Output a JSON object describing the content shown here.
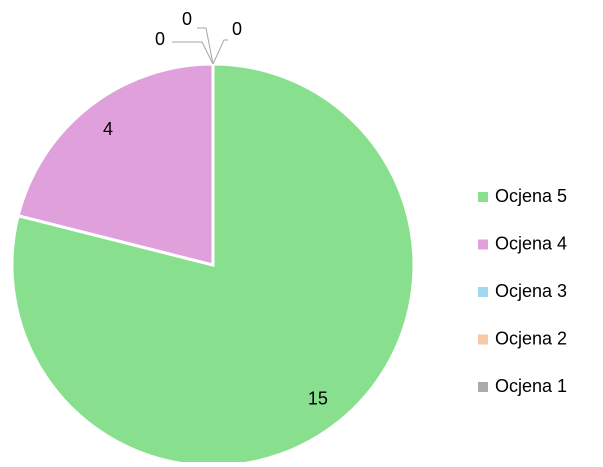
{
  "chart_data": {
    "type": "pie",
    "categories": [
      "Ocjena 5",
      "Ocjena 4",
      "Ocjena 3",
      "Ocjena 2",
      "Ocjena 1"
    ],
    "values": [
      15,
      4,
      0,
      0,
      0
    ],
    "colors": [
      "#88e08e",
      "#e0a0dc",
      "#a0d8f0",
      "#f5c8a8",
      "#aaaaaa"
    ],
    "legend": "right"
  }
}
